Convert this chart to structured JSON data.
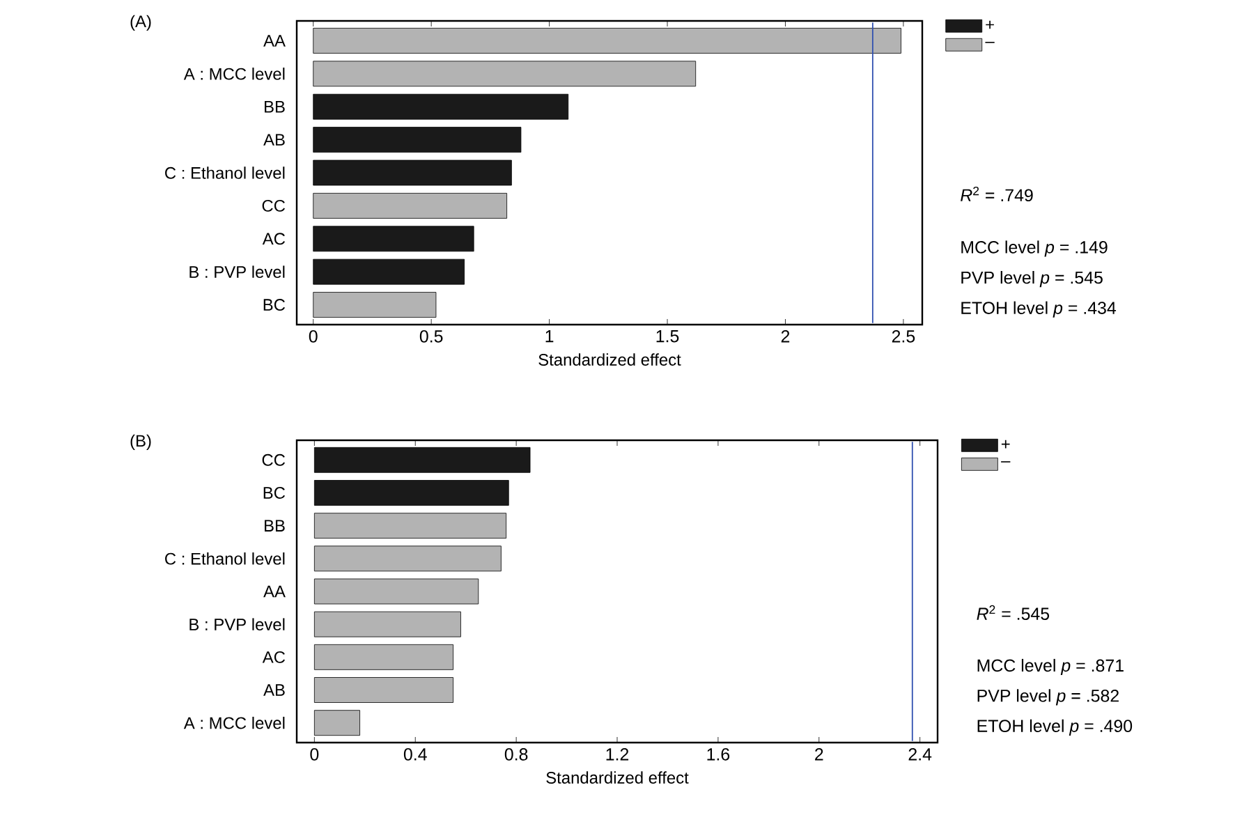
{
  "chart_data": [
    {
      "type": "bar",
      "orientation": "horizontal",
      "title": "(A)",
      "xlabel": "Standardized effect",
      "categories": [
        "AA",
        "A : MCC level",
        "BB",
        "AB",
        "C : Ethanol level",
        "CC",
        "AC",
        "B : PVP level",
        "BC"
      ],
      "series": [
        {
          "name": "+",
          "color": "#1a1a1a",
          "values": [
            null,
            null,
            1.08,
            0.88,
            0.84,
            null,
            0.68,
            0.64,
            null
          ]
        },
        {
          "name": "–",
          "color": "#b3b3b3",
          "values": [
            2.49,
            1.62,
            null,
            null,
            null,
            0.82,
            null,
            null,
            0.52
          ]
        }
      ],
      "xlim": [
        -0.07,
        2.58
      ],
      "xticks": [
        0,
        0.5,
        1,
        1.5,
        2,
        2.5
      ],
      "ref_lines": [
        {
          "axis": "x",
          "value": 2.37,
          "color": "#3050b0"
        }
      ],
      "legend": "top right",
      "annotations": [
        "*R*$^{2}$ = .749",
        "MCC level    *p* = .149",
        "PVP level     *p* = .545",
        "ETOH level  *p* = .434"
      ]
    },
    {
      "type": "bar",
      "orientation": "horizontal",
      "title": "(B)",
      "xlabel": "Standardized effect",
      "categories": [
        "CC",
        "BC",
        "BB",
        "C : Ethanol level",
        "AA",
        "B : PVP level",
        "AC",
        "AB",
        "A : MCC level"
      ],
      "series": [
        {
          "name": "+",
          "color": "#1a1a1a",
          "values": [
            0.855,
            0.77,
            null,
            null,
            null,
            null,
            null,
            null,
            null
          ]
        },
        {
          "name": "–",
          "color": "#b3b3b3",
          "values": [
            null,
            null,
            0.76,
            0.74,
            0.65,
            0.58,
            0.55,
            0.55,
            0.18
          ]
        }
      ],
      "xlim": [
        -0.07,
        2.47
      ],
      "xticks": [
        0,
        0.4,
        0.8,
        1.2,
        1.6,
        2,
        2.4
      ],
      "ref_lines": [
        {
          "axis": "x",
          "value": 2.37,
          "color": "#3050b0"
        }
      ],
      "legend": "top right",
      "annotations": [
        "*R*$^{2}$ = .545",
        "MCC level    *p* = .871",
        "PVP level     *p* = .582",
        "ETOH level  *p* = .490"
      ]
    }
  ]
}
